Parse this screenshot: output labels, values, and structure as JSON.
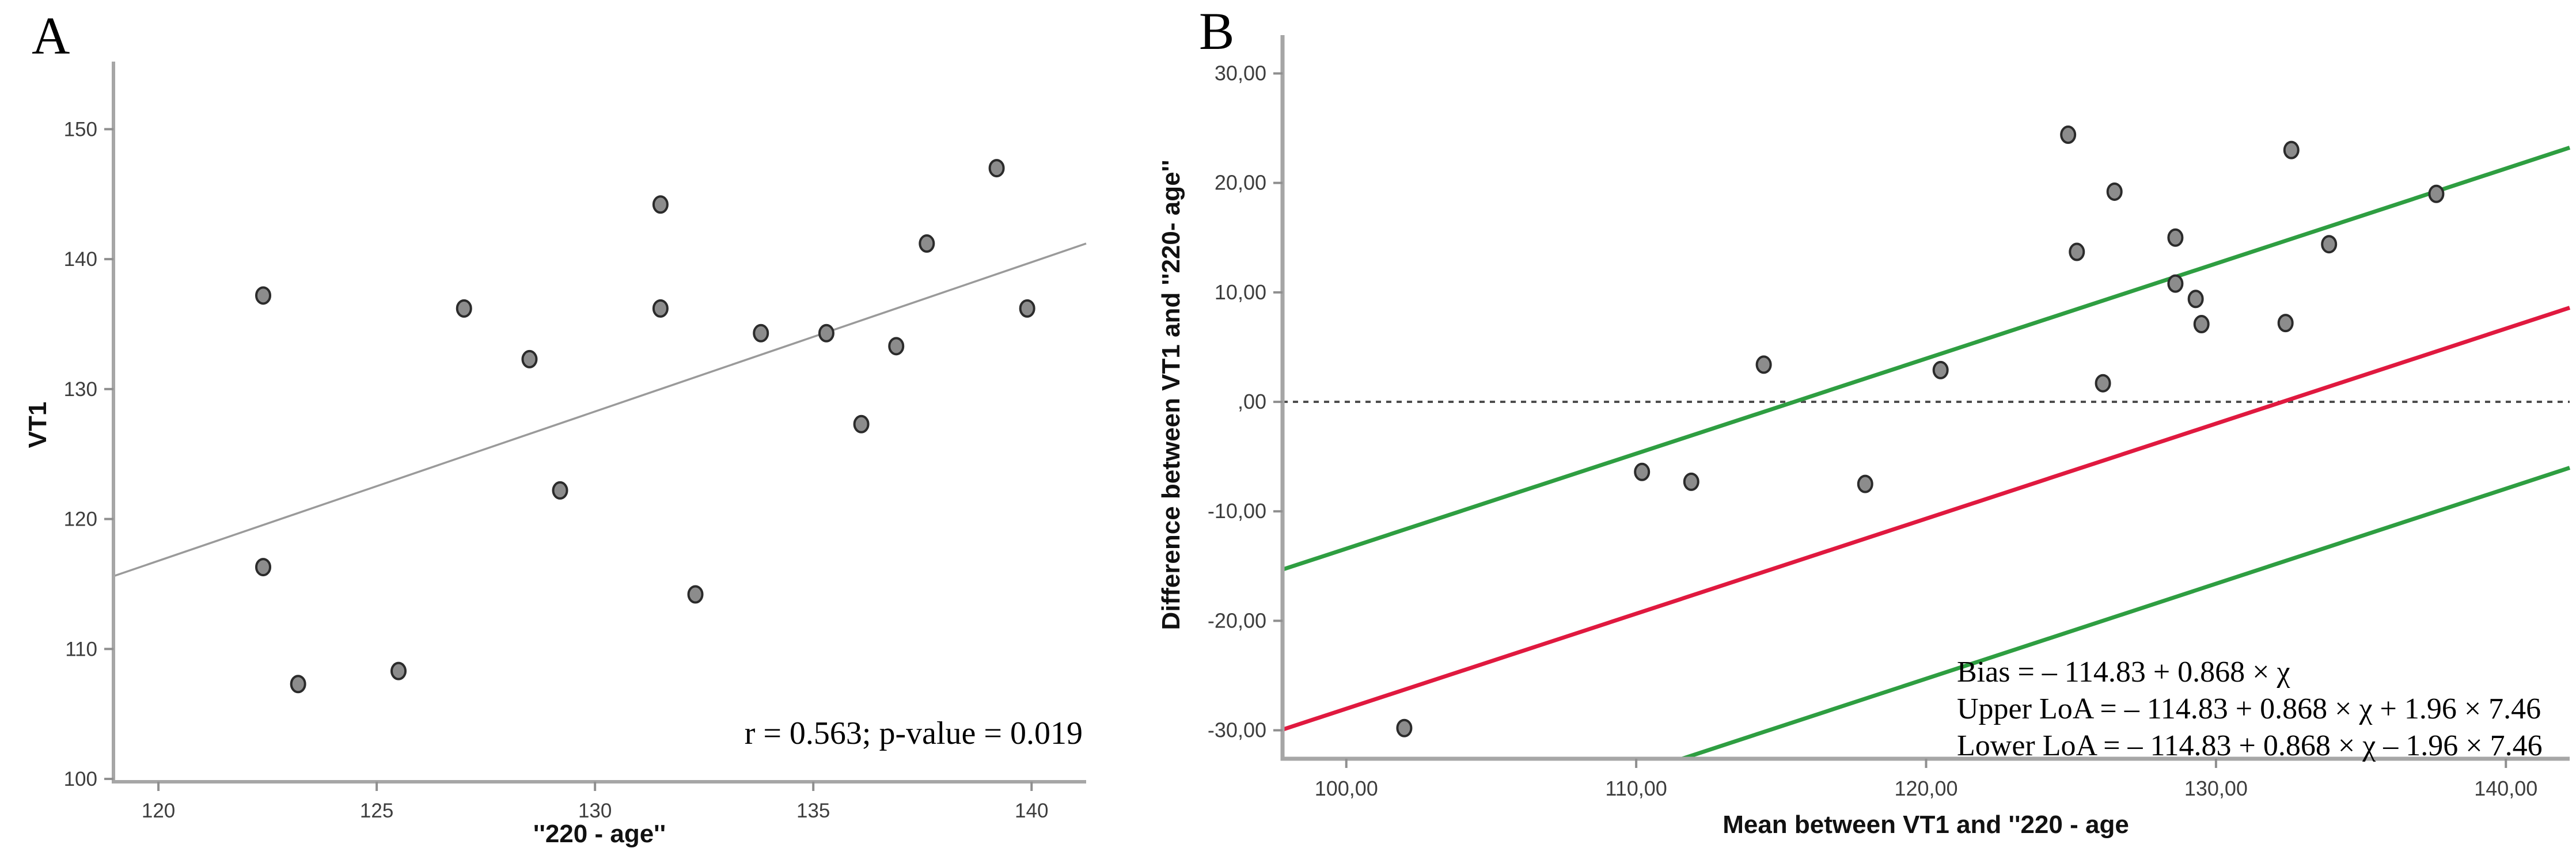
{
  "figure": {
    "background": "#ffffff",
    "axis_color": "#a6a6a6",
    "tick_color": "#8f8f8f",
    "tick_label_color": "#3d3d3d",
    "point_fill": "#8c8c8c",
    "point_stroke": "#2b2b2b"
  },
  "chart_data": [
    {
      "type": "scatter",
      "letter": "A",
      "title": "",
      "xlabel": "''220 - age''",
      "ylabel": "VT1",
      "xlim": [
        118.97,
        141.25
      ],
      "ylim": [
        99.78,
        155.2
      ],
      "grid": false,
      "x_ticks": {
        "values": [
          120,
          125,
          130,
          135,
          140
        ],
        "labels": [
          "120",
          "125",
          "130",
          "135",
          "140"
        ]
      },
      "y_ticks": {
        "values": [
          100,
          110,
          120,
          130,
          140,
          150
        ],
        "labels": [
          "100",
          "110",
          "120",
          "130",
          "140",
          "150"
        ]
      },
      "points": [
        [
          122.4,
          137.2
        ],
        [
          122.4,
          116.3
        ],
        [
          123.2,
          107.3
        ],
        [
          125.5,
          108.3
        ],
        [
          127.0,
          136.2
        ],
        [
          128.5,
          132.3
        ],
        [
          129.2,
          122.2
        ],
        [
          131.5,
          144.2
        ],
        [
          131.5,
          136.2
        ],
        [
          132.3,
          114.2
        ],
        [
          133.8,
          134.3
        ],
        [
          135.3,
          134.3
        ],
        [
          136.1,
          127.3
        ],
        [
          136.9,
          133.3
        ],
        [
          137.6,
          141.2
        ],
        [
          139.2,
          147.0
        ],
        [
          139.9,
          136.2
        ]
      ],
      "fit_line": {
        "x1": 118.97,
        "y1": 115.6,
        "x2": 141.25,
        "y2": 141.2,
        "color": "#9a9a9a"
      },
      "annotation": "r = 0.563; p-value = 0.019"
    },
    {
      "type": "scatter",
      "letter": "B",
      "title": "",
      "xlabel": "Mean between VT1 and ''220 - age",
      "ylabel": "Difference between VT1 and ''220- age''",
      "xlim": [
        97.8,
        142.2
      ],
      "ylim": [
        -32.6,
        33.5
      ],
      "grid": false,
      "x_ticks": {
        "values": [
          100,
          110,
          120,
          130,
          140
        ],
        "labels": [
          "100,00",
          "110,00",
          "120,00",
          "130,00",
          "140,00"
        ]
      },
      "y_ticks": {
        "values": [
          30,
          20,
          10,
          0,
          -10,
          -20,
          -30
        ],
        "labels": [
          "30,00",
          "20,00",
          "10,00",
          ",00",
          "-10,00",
          "-20,00",
          "-30,00"
        ]
      },
      "points": [
        [
          102.0,
          -29.8
        ],
        [
          110.2,
          -6.4
        ],
        [
          111.9,
          -7.3
        ],
        [
          117.9,
          -7.5
        ],
        [
          114.4,
          3.4
        ],
        [
          120.5,
          2.9
        ],
        [
          126.1,
          1.7
        ],
        [
          124.9,
          24.4
        ],
        [
          126.5,
          19.2
        ],
        [
          125.2,
          13.7
        ],
        [
          128.6,
          15.0
        ],
        [
          128.6,
          10.8
        ],
        [
          129.3,
          9.4
        ],
        [
          129.5,
          7.1
        ],
        [
          132.4,
          7.2
        ],
        [
          133.9,
          14.4
        ],
        [
          132.6,
          23.0
        ],
        [
          137.6,
          19.0
        ]
      ],
      "zero_line": {
        "y": 0,
        "style": "dashed",
        "color": "#4d4d4d"
      },
      "reference_lines": [
        {
          "name": "bias-line",
          "intercept": -114.83,
          "slope": 0.868,
          "offset": 0,
          "color": "#e0193f"
        },
        {
          "name": "upper-loa-line",
          "intercept": -114.83,
          "slope": 0.868,
          "offset": 14.6216,
          "color": "#2e9e41"
        },
        {
          "name": "lower-loa-line",
          "intercept": -114.83,
          "slope": 0.868,
          "offset": -14.6216,
          "color": "#2e9e41"
        }
      ],
      "annotation_lines": [
        "Bias = – 114.83 + 0.868 × χ",
        "Upper LoA = – 114.83 + 0.868 × χ + 1.96 × 7.46",
        "Lower LoA = – 114.83 + 0.868 × χ – 1.96 × 7.46"
      ]
    }
  ]
}
